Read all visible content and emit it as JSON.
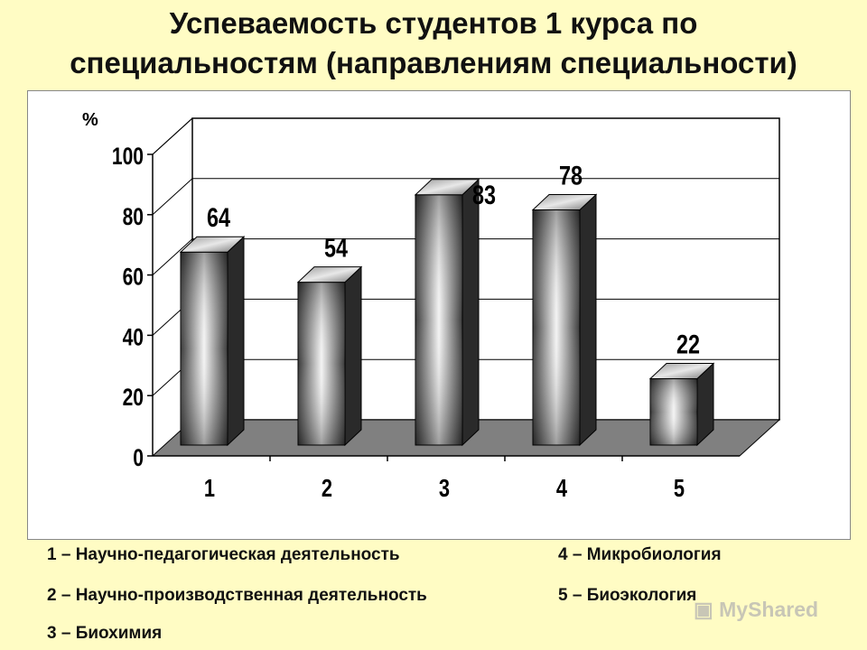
{
  "title_line1": "Успеваемость студентов 1 курса по",
  "title_line2": "специальностям (направлениям специальности)",
  "chart_data": {
    "type": "bar",
    "categories": [
      "1",
      "2",
      "3",
      "4",
      "5"
    ],
    "values": [
      64,
      54,
      83,
      78,
      22
    ],
    "ylabel": "%",
    "ylim": [
      0,
      100
    ],
    "yticks": [
      0,
      20,
      40,
      60,
      80,
      100
    ],
    "grid": true,
    "bar_style": "3d-cylinder-gray"
  },
  "legend": {
    "item1": "1 – Научно-педагогическая деятельность",
    "item2": "2 – Научно-производственная деятельность",
    "item3": "3 – Биохимия",
    "item4": "4 – Микробиология",
    "item5": "5 – Биоэкология"
  },
  "watermark": "MyShared"
}
